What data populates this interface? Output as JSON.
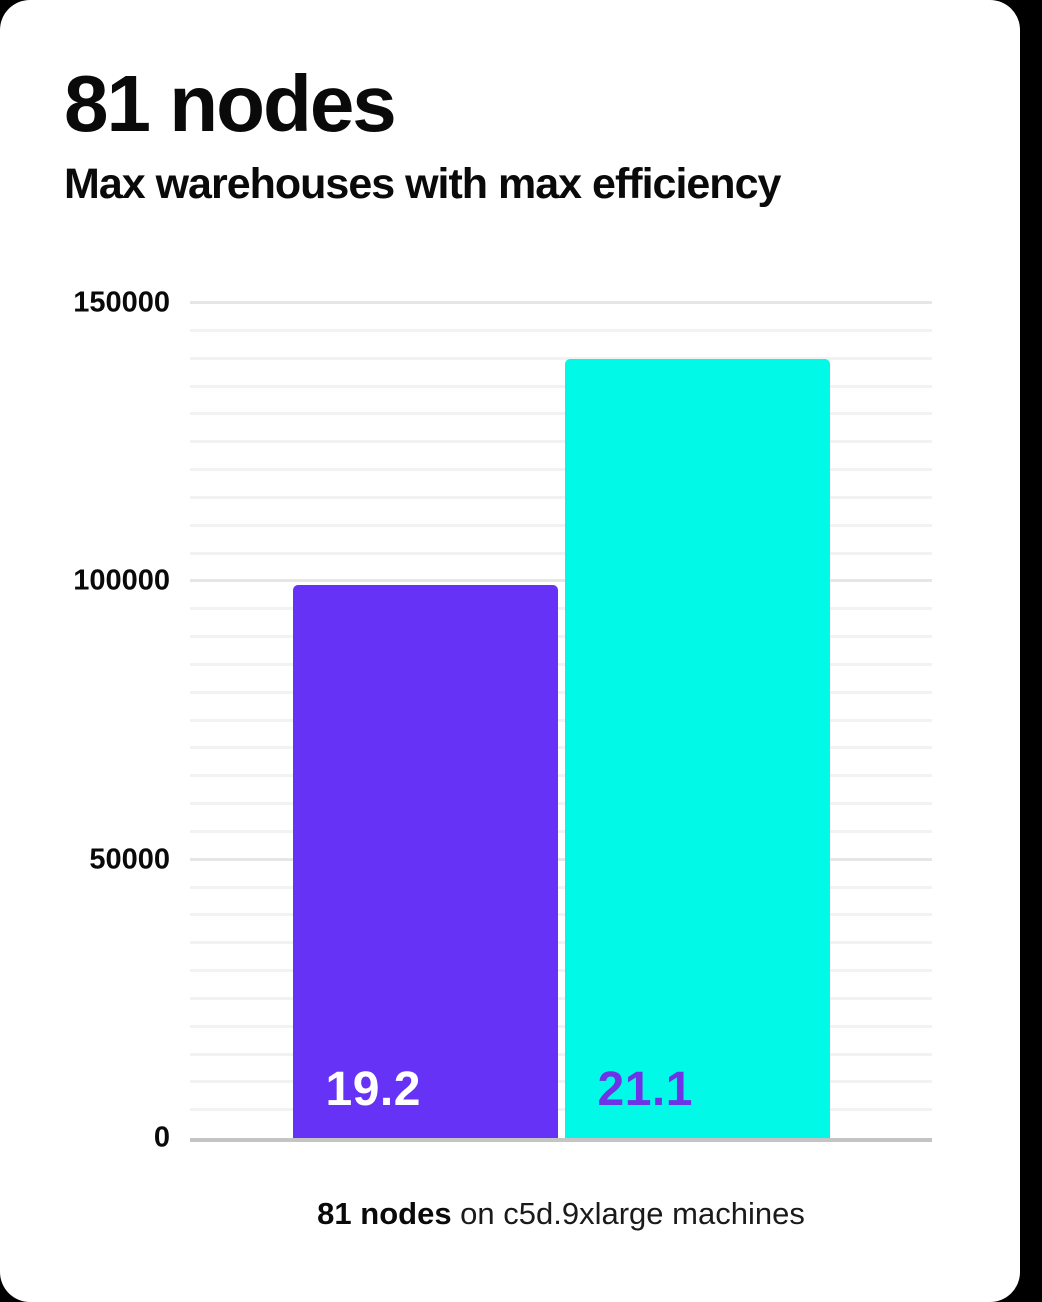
{
  "page": {
    "background_color": "#000000",
    "card_color": "#ffffff"
  },
  "header": {
    "title": "81 nodes",
    "subtitle": "Max warehouses with max efficiency"
  },
  "chart_data": {
    "type": "bar",
    "title": "81 nodes",
    "subtitle": "Max warehouses with max efficiency",
    "categories": [
      "19.2",
      "21.1"
    ],
    "values": [
      99300,
      140000
    ],
    "bar_colors": [
      "#6632F5",
      "#01F9E7"
    ],
    "bar_label_colors": [
      "#ffffff",
      "#6E33E6"
    ],
    "xlabel": "",
    "ylabel": "",
    "ylim": [
      0,
      150000
    ],
    "yticks": [
      0,
      50000,
      100000,
      150000
    ],
    "ytick_labels": [
      "0",
      "50000",
      "100000",
      "150000"
    ],
    "gridline_step": 5000,
    "grid": "horizontal-minor-and-major",
    "legend": "none",
    "grid_minor_color": "#f2f2f2",
    "grid_major_color": "#e6e6e6",
    "axis_line_color": "#c4c4c4"
  },
  "caption": {
    "bold": "81 nodes",
    "rest": " on c5d.9xlarge machines"
  }
}
